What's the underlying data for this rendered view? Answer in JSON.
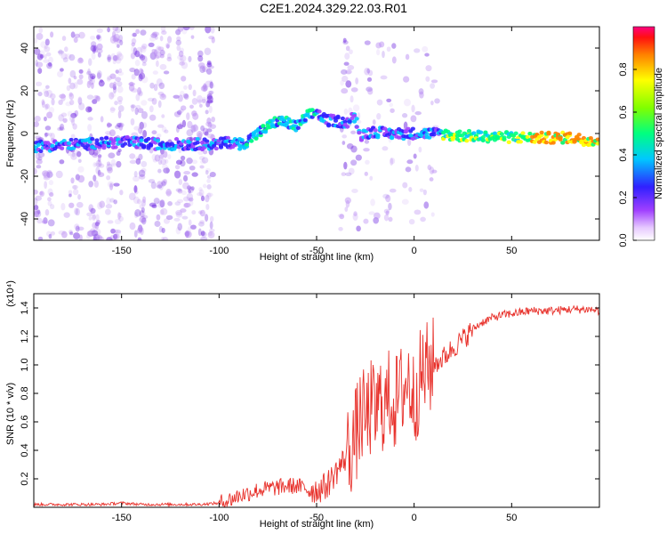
{
  "title": "C2E1.2024.329.22.03.R01",
  "colors": {
    "snr_line": "#e8322c",
    "low_amp": "#a070e6",
    "mid_amp": "#1e50ff",
    "high_amp": "#ff2a00"
  },
  "chart_data": [
    {
      "type": "heatmap",
      "title": "C2E1.2024.329.22.03.R01",
      "xlabel": "Height of straight line (km)",
      "ylabel": "Frequency (Hz)",
      "xlim": [
        -195,
        95
      ],
      "ylim": [
        -50,
        50
      ],
      "x_ticks": [
        -150,
        -100,
        -50,
        0,
        50
      ],
      "y_ticks": [
        -40,
        -20,
        0,
        20,
        40
      ],
      "colorbar": {
        "label": "Normalized spectral amplitude",
        "range": [
          0,
          1
        ],
        "ticks": [
          0.0,
          0.2,
          0.4,
          0.6,
          0.8
        ]
      },
      "ridge": {
        "x": [
          -195,
          -170,
          -150,
          -130,
          -110,
          -100,
          -95,
          -88,
          -80,
          -75,
          -70,
          -65,
          -60,
          -55,
          -50,
          -45,
          -40,
          -35,
          -30,
          -28,
          -25,
          -20,
          -15,
          -10,
          -5,
          0,
          5,
          10,
          14,
          20,
          40,
          60,
          80,
          88,
          95
        ],
        "y": [
          -6,
          -5,
          -4,
          -5,
          -5,
          -5,
          -4,
          -5,
          0,
          3,
          6,
          5,
          3,
          8,
          10,
          6,
          6,
          5,
          8,
          -1,
          0,
          1,
          0,
          0,
          0,
          0,
          0,
          0,
          0,
          -1,
          -1.5,
          -2,
          -2,
          -3,
          -3.5
        ]
      }
    },
    {
      "type": "line",
      "xlabel": "Height of straight line (km)",
      "ylabel": "SNR (10 * v/v)",
      "y_scale_label": "(x10⁴)",
      "xlim": [
        -195,
        95
      ],
      "ylim": [
        0,
        1.5
      ],
      "x_ticks": [
        -150,
        -100,
        -50,
        0,
        50
      ],
      "y_ticks": [
        0.2,
        0.4,
        0.6,
        0.8,
        1.0,
        1.2,
        1.4
      ],
      "series": [
        {
          "x": [
            -195,
            -180,
            -170,
            -160,
            -150,
            -140,
            -130,
            -120,
            -110,
            -100,
            -95,
            -90,
            -85,
            -80,
            -75,
            -70,
            -65,
            -60,
            -55,
            -50,
            -45,
            -40,
            -35,
            -30,
            -27,
            -25,
            -22,
            -20,
            -17,
            -15,
            -12,
            -10,
            -7,
            -5,
            -3,
            0,
            3,
            5,
            10,
            15,
            20,
            25,
            30,
            35,
            40,
            45,
            50,
            55,
            60,
            70,
            80,
            90,
            95
          ],
          "y": [
            0.02,
            0.02,
            0.02,
            0.02,
            0.03,
            0.02,
            0.02,
            0.02,
            0.02,
            0.03,
            0.05,
            0.08,
            0.1,
            0.12,
            0.13,
            0.14,
            0.15,
            0.15,
            0.13,
            0.12,
            0.15,
            0.25,
            0.35,
            0.5,
            0.65,
            0.6,
            0.7,
            0.65,
            0.75,
            0.7,
            0.8,
            0.72,
            0.8,
            0.85,
            0.9,
            0.75,
            0.9,
            0.95,
            1.0,
            1.05,
            1.12,
            1.18,
            1.25,
            1.3,
            1.33,
            1.35,
            1.36,
            1.37,
            1.38,
            1.38,
            1.39,
            1.39,
            1.38
          ]
        }
      ]
    }
  ]
}
